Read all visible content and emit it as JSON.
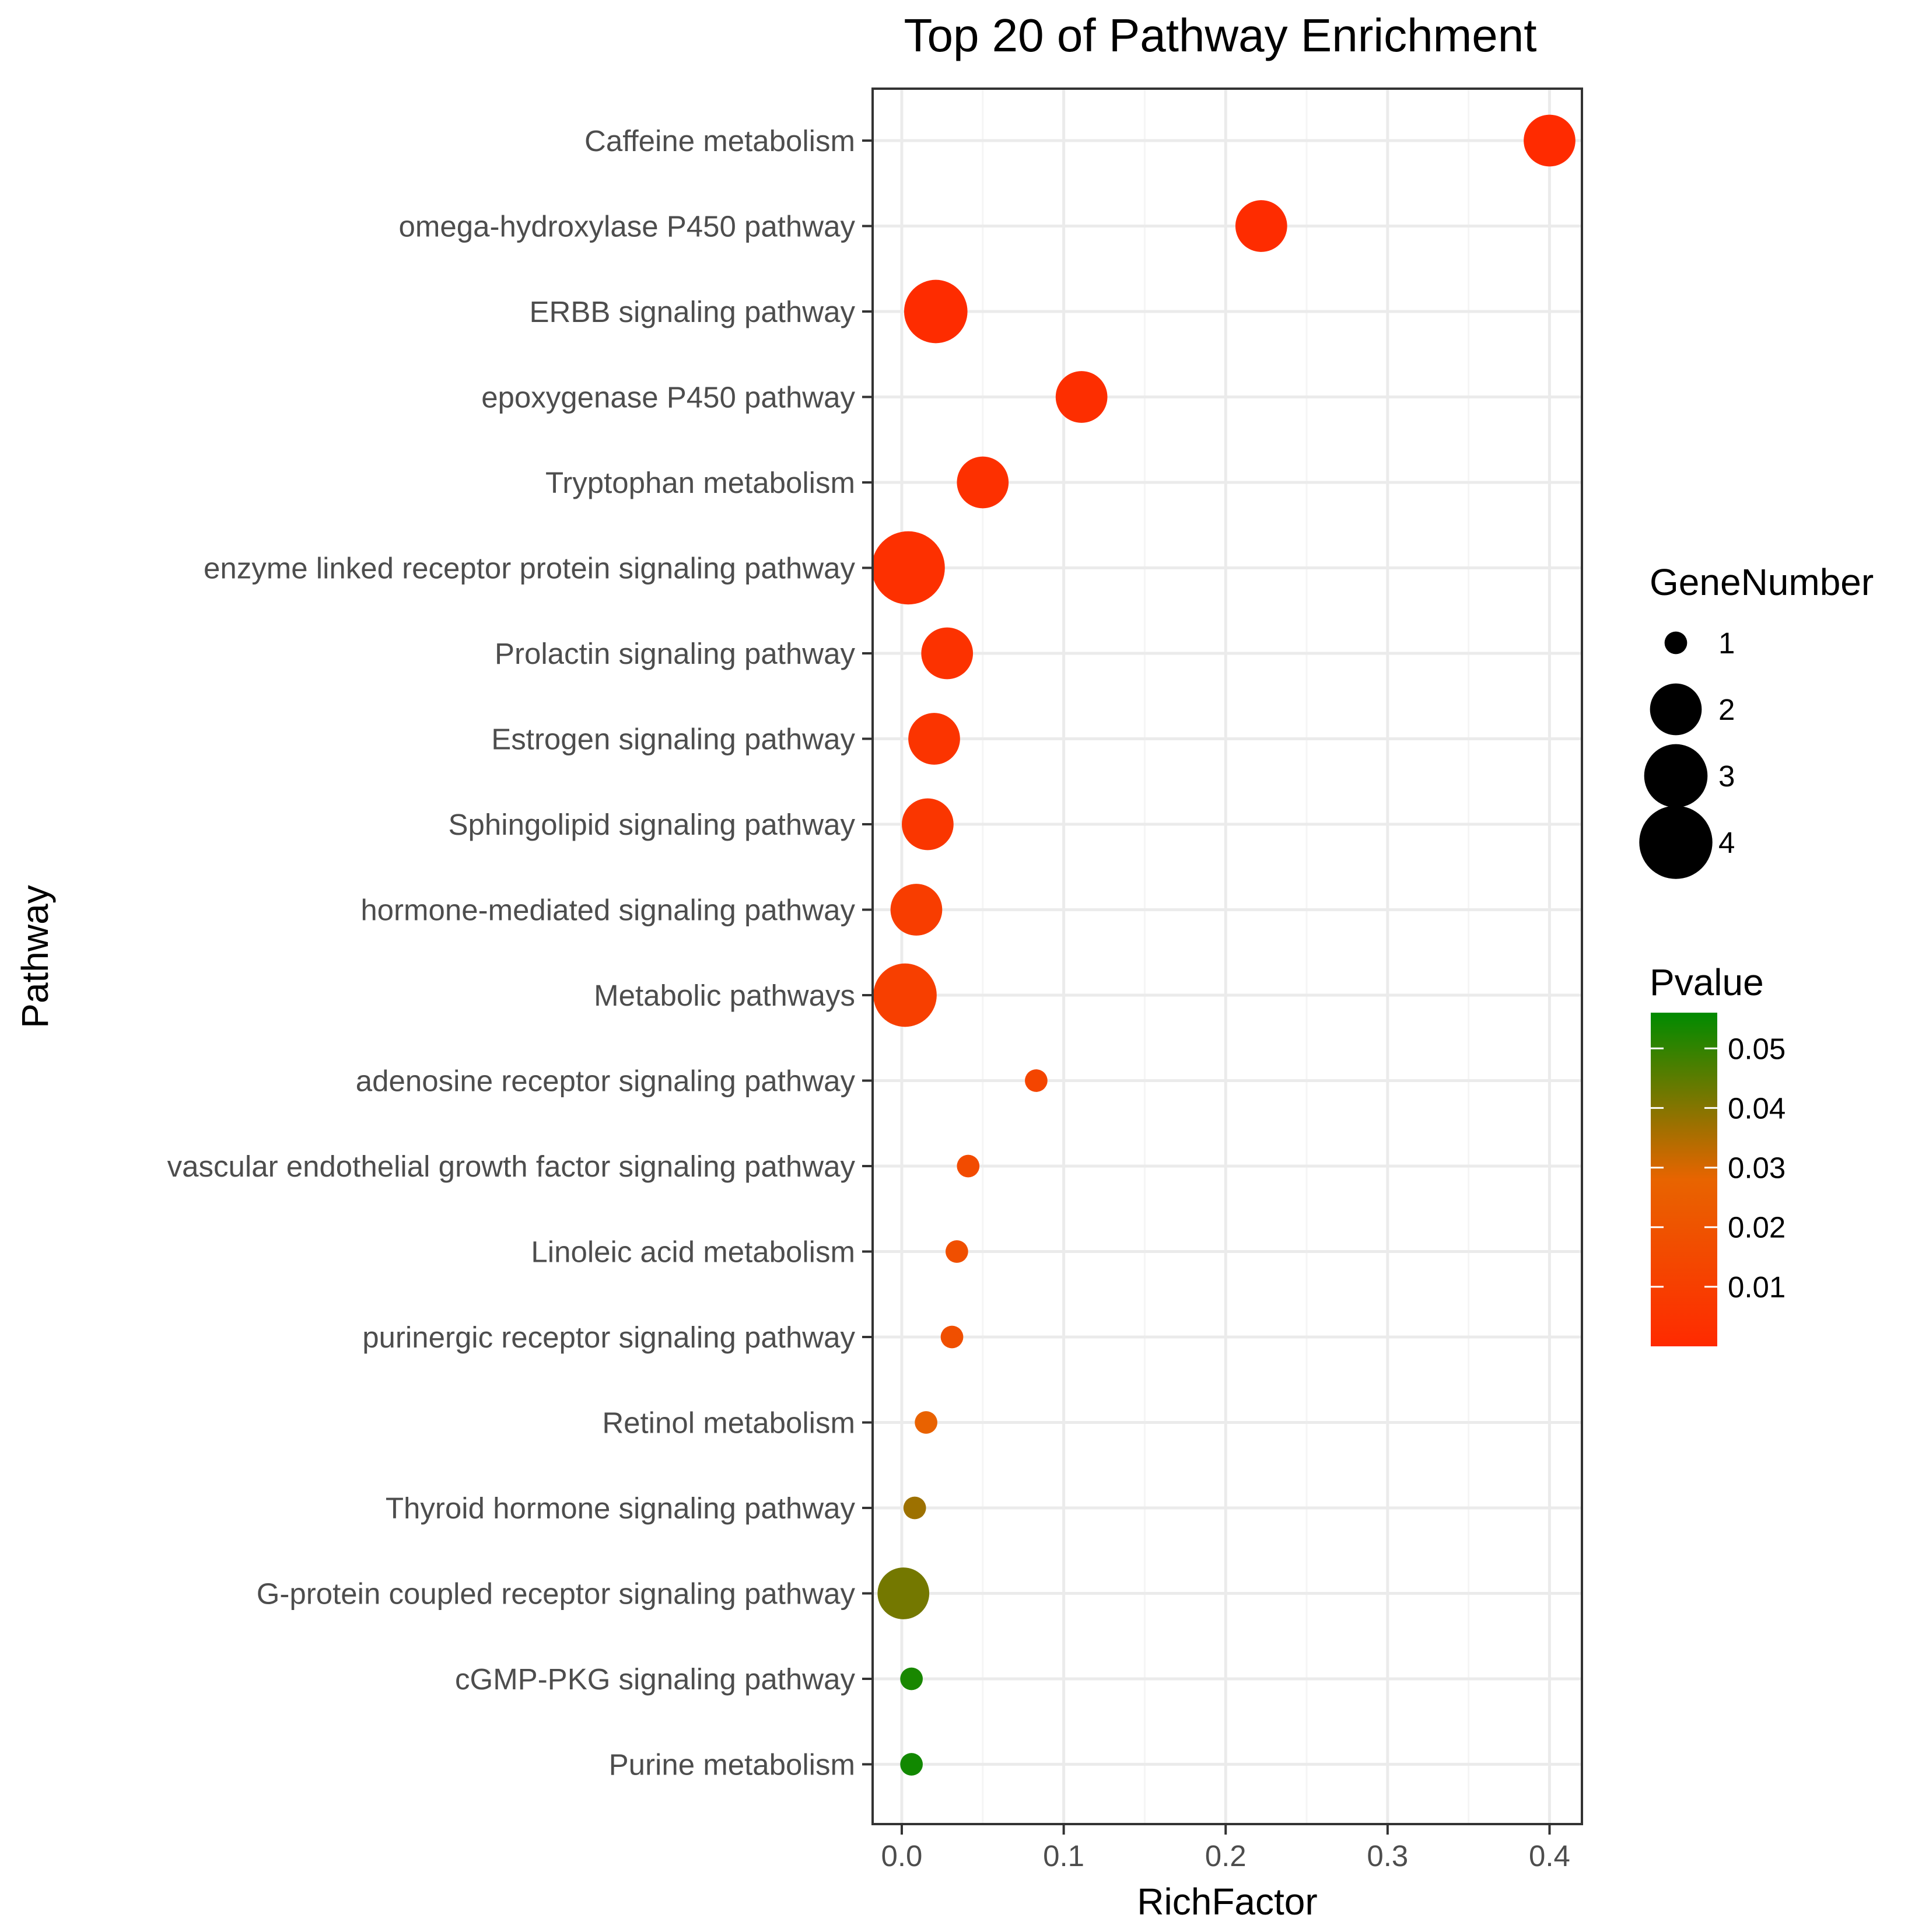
{
  "chart_data": {
    "type": "scatter",
    "title": "Top 20 of Pathway Enrichment",
    "xlabel": "RichFactor",
    "ylabel": "Pathway",
    "xlim": [
      -0.018,
      0.42
    ],
    "xticks": [
      0.0,
      0.1,
      0.2,
      0.3,
      0.4
    ],
    "xtick_labels": [
      "0.0",
      "0.1",
      "0.2",
      "0.3",
      "0.4"
    ],
    "grid": true,
    "categories": [
      "Caffeine metabolism",
      "omega-hydroxylase P450 pathway",
      "ERBB signaling pathway",
      "epoxygenase P450 pathway",
      "Tryptophan metabolism",
      "enzyme linked receptor protein signaling pathway",
      "Prolactin signaling pathway",
      "Estrogen signaling pathway",
      "Sphingolipid signaling pathway",
      "hormone-mediated signaling pathway",
      "Metabolic pathways",
      "adenosine receptor signaling pathway",
      "vascular endothelial growth factor signaling pathway",
      "Linoleic acid metabolism",
      "purinergic receptor signaling pathway",
      "Retinol metabolism",
      "Thyroid hormone signaling pathway",
      "G-protein coupled receptor signaling pathway",
      "cGMP-PKG signaling pathway",
      "Purine metabolism"
    ],
    "points": [
      {
        "pathway": "Caffeine metabolism",
        "rich_factor": 0.4,
        "gene_number": 2,
        "pvalue": 0.0005
      },
      {
        "pathway": "omega-hydroxylase P450 pathway",
        "rich_factor": 0.222,
        "gene_number": 2,
        "pvalue": 0.001
      },
      {
        "pathway": "ERBB signaling pathway",
        "rich_factor": 0.021,
        "gene_number": 3,
        "pvalue": 0.001
      },
      {
        "pathway": "epoxygenase P450 pathway",
        "rich_factor": 0.111,
        "gene_number": 2,
        "pvalue": 0.002
      },
      {
        "pathway": "Tryptophan metabolism",
        "rich_factor": 0.05,
        "gene_number": 2,
        "pvalue": 0.003
      },
      {
        "pathway": "enzyme linked receptor protein signaling pathway",
        "rich_factor": 0.004,
        "gene_number": 4,
        "pvalue": 0.003
      },
      {
        "pathway": "Prolactin signaling pathway",
        "rich_factor": 0.028,
        "gene_number": 2,
        "pvalue": 0.004
      },
      {
        "pathway": "Estrogen signaling pathway",
        "rich_factor": 0.02,
        "gene_number": 2,
        "pvalue": 0.005
      },
      {
        "pathway": "Sphingolipid signaling pathway",
        "rich_factor": 0.016,
        "gene_number": 2,
        "pvalue": 0.006
      },
      {
        "pathway": "hormone-mediated signaling pathway",
        "rich_factor": 0.009,
        "gene_number": 2,
        "pvalue": 0.009
      },
      {
        "pathway": "Metabolic pathways",
        "rich_factor": 0.002,
        "gene_number": 3,
        "pvalue": 0.01
      },
      {
        "pathway": "adenosine receptor signaling pathway",
        "rich_factor": 0.083,
        "gene_number": 1,
        "pvalue": 0.013
      },
      {
        "pathway": "vascular endothelial growth factor signaling pathway",
        "rich_factor": 0.041,
        "gene_number": 1,
        "pvalue": 0.016
      },
      {
        "pathway": "Linoleic acid metabolism",
        "rich_factor": 0.034,
        "gene_number": 1,
        "pvalue": 0.018
      },
      {
        "pathway": "purinergic receptor signaling pathway",
        "rich_factor": 0.031,
        "gene_number": 1,
        "pvalue": 0.018
      },
      {
        "pathway": "Retinol metabolism",
        "rich_factor": 0.015,
        "gene_number": 1,
        "pvalue": 0.027
      },
      {
        "pathway": "Thyroid hormone signaling pathway",
        "rich_factor": 0.008,
        "gene_number": 1,
        "pvalue": 0.037
      },
      {
        "pathway": "G-protein coupled receptor signaling pathway",
        "rich_factor": 0.001,
        "gene_number": 2,
        "pvalue": 0.042
      },
      {
        "pathway": "cGMP-PKG signaling pathway",
        "rich_factor": 0.006,
        "gene_number": 1,
        "pvalue": 0.053
      },
      {
        "pathway": "Purine metabolism",
        "rich_factor": 0.006,
        "gene_number": 1,
        "pvalue": 0.054
      }
    ],
    "size_legend": {
      "title": "GeneNumber",
      "values": [
        1,
        2,
        3,
        4
      ],
      "labels": [
        "1",
        "2",
        "3",
        "4"
      ]
    },
    "color_legend": {
      "title": "Pvalue",
      "range": [
        0.0,
        0.056
      ],
      "ticks": [
        0.05,
        0.04,
        0.03,
        0.02,
        0.01
      ],
      "tick_labels": [
        "0.05",
        "0.04",
        "0.03",
        "0.02",
        "0.01"
      ],
      "low_color": "#ff2a00",
      "high_color": "#008b00"
    },
    "colors": {
      "panel_border": "#333333",
      "grid_major": "#ebebeb",
      "grid_minor": "#f5f5f5",
      "size_legend_point": "#000000"
    }
  }
}
